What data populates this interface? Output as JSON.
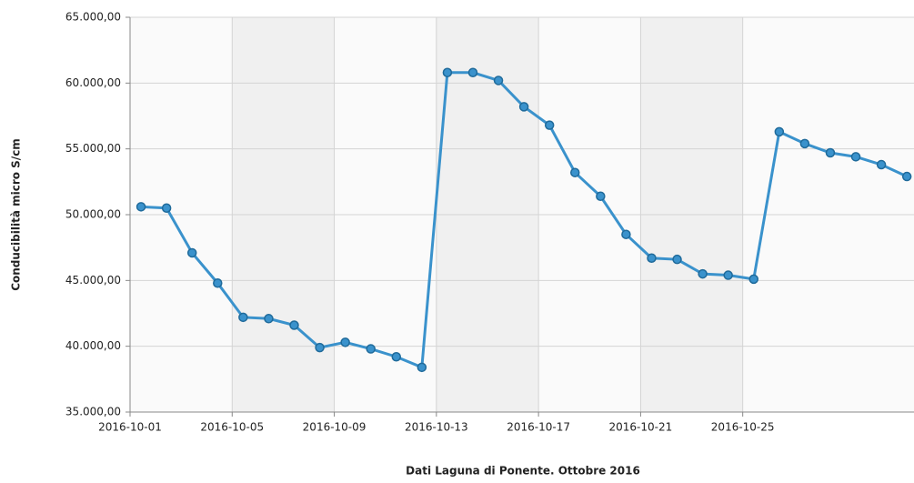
{
  "chart_data": {
    "type": "line",
    "xlabel": "Dati Laguna di Ponente. Ottobre 2016",
    "ylabel": "Conducibilità micro S/cm",
    "x": [
      "2016-10-01",
      "2016-10-02",
      "2016-10-03",
      "2016-10-04",
      "2016-10-05",
      "2016-10-06",
      "2016-10-07",
      "2016-10-08",
      "2016-10-09",
      "2016-10-10",
      "2016-10-11",
      "2016-10-12",
      "2016-10-13",
      "2016-10-14",
      "2016-10-15",
      "2016-10-16",
      "2016-10-17",
      "2016-10-18",
      "2016-10-19",
      "2016-10-20",
      "2016-10-21",
      "2016-10-22",
      "2016-10-23",
      "2016-10-24",
      "2016-10-25",
      "2016-10-26",
      "2016-10-27",
      "2016-10-28",
      "2016-10-29",
      "2016-10-30",
      "2016-10-31"
    ],
    "series": [
      {
        "name": "Conducibilità",
        "color": "#3a92cc",
        "values": [
          50600,
          50500,
          47100,
          44800,
          42200,
          42100,
          41600,
          39900,
          40300,
          39800,
          39200,
          38400,
          60800,
          60800,
          60200,
          58200,
          56800,
          53200,
          51400,
          48500,
          46700,
          46600,
          45500,
          45400,
          45100,
          56300,
          55400,
          54700,
          54400,
          53800,
          52900
        ]
      }
    ],
    "xlim": [
      "2016-10-01",
      "2016-10-31"
    ],
    "xticks": [
      "2016-10-01",
      "2016-10-05",
      "2016-10-09",
      "2016-10-13",
      "2016-10-17",
      "2016-10-21",
      "2016-10-25"
    ],
    "ylim": [
      35000,
      65000
    ],
    "yticks": [
      {
        "value": 35000,
        "label": "35.000,00"
      },
      {
        "value": 40000,
        "label": "40.000,00"
      },
      {
        "value": 45000,
        "label": "45.000,00"
      },
      {
        "value": 50000,
        "label": "50.000,00"
      },
      {
        "value": 55000,
        "label": "55.000,00"
      },
      {
        "value": 60000,
        "label": "60.000,00"
      },
      {
        "value": 65000,
        "label": "65.000,00"
      }
    ],
    "grid": true
  }
}
